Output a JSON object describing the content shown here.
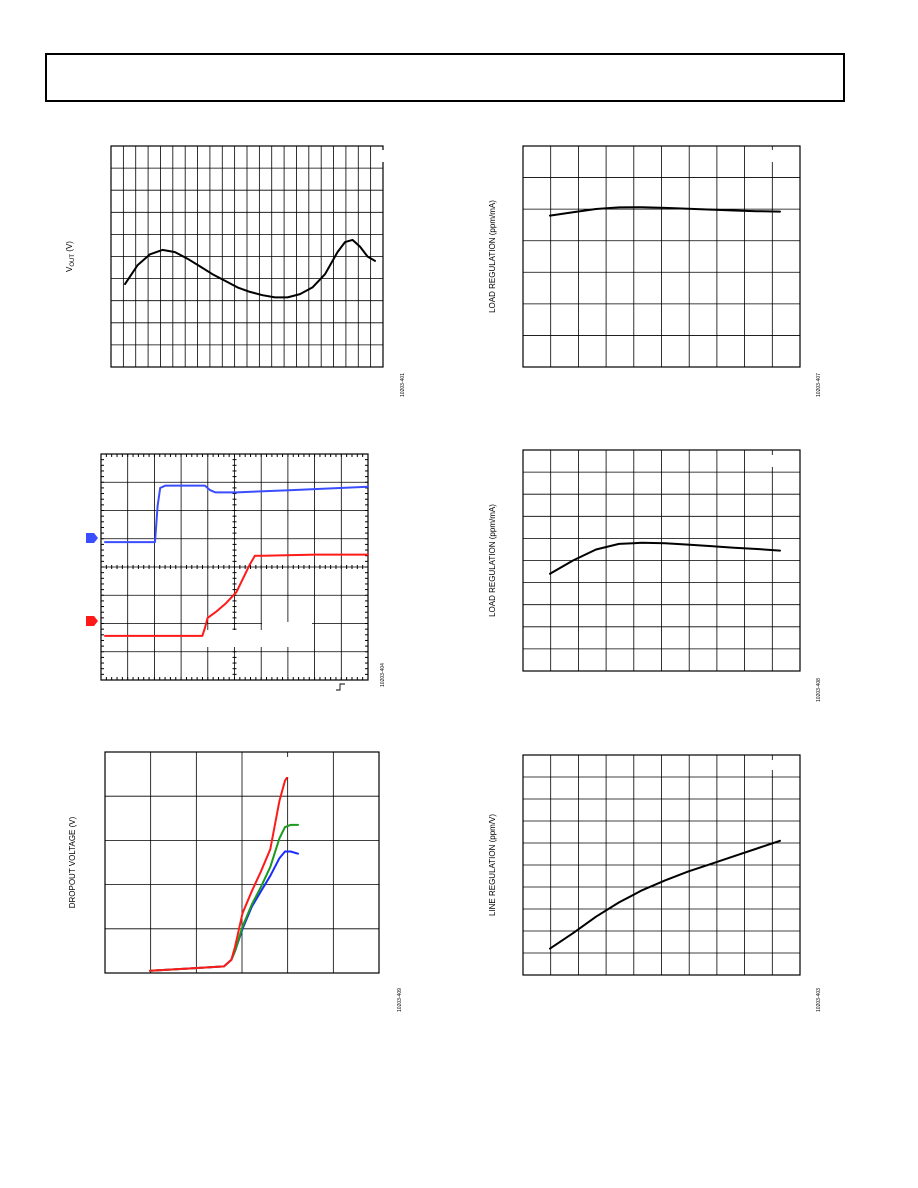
{
  "header": {
    "title": ""
  },
  "figures": [
    {
      "ylabel": "V",
      "ylabel_sub": "OUT",
      "ylabel_unit": " (V)",
      "fig_id": "10203-401"
    },
    {
      "ylabel": "LOAD REGULATION (ppm/mA)",
      "fig_id": "10203-407"
    },
    {
      "ylabel": "",
      "fig_id": "10203-404"
    },
    {
      "ylabel": "LOAD REGULATION (ppm/mA)",
      "fig_id": "10203-408"
    },
    {
      "ylabel": "DROPOUT VOLTAGE (V)",
      "fig_id": "10203-409"
    },
    {
      "ylabel": "LINE REGULATION (ppm/V)",
      "fig_id": "10203-403"
    }
  ],
  "chart_data": [
    {
      "type": "line",
      "title": "",
      "xlabel": "",
      "ylabel": "VOUT (V)",
      "grid": true,
      "series": [
        {
          "color": "#000000",
          "x": [
            0,
            0.05,
            0.1,
            0.15,
            0.2,
            0.25,
            0.3,
            0.35,
            0.4,
            0.45,
            0.5,
            0.55,
            0.6,
            0.65,
            0.7,
            0.75,
            0.8,
            0.85,
            0.88,
            0.91,
            0.94,
            0.97,
            1.0
          ],
          "y": [
            0.375,
            0.46,
            0.51,
            0.53,
            0.52,
            0.49,
            0.455,
            0.42,
            0.39,
            0.36,
            0.34,
            0.325,
            0.315,
            0.315,
            0.33,
            0.36,
            0.42,
            0.52,
            0.565,
            0.575,
            0.545,
            0.5,
            0.48
          ]
        }
      ]
    },
    {
      "type": "line",
      "title": "",
      "xlabel": "",
      "ylabel": "LOAD REGULATION (ppm/mA)",
      "grid": true,
      "series": [
        {
          "color": "#000000",
          "x": [
            0,
            0.1,
            0.2,
            0.3,
            0.4,
            0.5,
            0.6,
            0.7,
            0.8,
            0.9,
            1.0
          ],
          "y": [
            0.685,
            0.7,
            0.715,
            0.722,
            0.723,
            0.72,
            0.716,
            0.712,
            0.708,
            0.705,
            0.703
          ]
        }
      ]
    },
    {
      "type": "line",
      "title": "",
      "xlabel": "",
      "ylabel": "",
      "grid": true,
      "markers": [
        "blue-arrow",
        "red-arrow"
      ],
      "series": [
        {
          "color": "#3a4dff",
          "x": [
            0,
            0.19,
            0.2,
            0.21,
            0.23,
            0.38,
            0.4,
            0.42,
            0.5,
            0.7,
            1.0
          ],
          "y": [
            0.61,
            0.61,
            0.77,
            0.85,
            0.86,
            0.86,
            0.84,
            0.83,
            0.83,
            0.84,
            0.855
          ]
        },
        {
          "color": "#ff1a1a",
          "x": [
            0,
            0.37,
            0.38,
            0.39,
            0.42,
            0.46,
            0.5,
            0.55,
            0.57,
            0.6,
            0.8,
            1.0
          ],
          "y": [
            0.195,
            0.195,
            0.23,
            0.275,
            0.3,
            0.34,
            0.39,
            0.51,
            0.55,
            0.55,
            0.555,
            0.555
          ]
        }
      ]
    },
    {
      "type": "line",
      "title": "",
      "xlabel": "",
      "ylabel": "LOAD REGULATION (ppm/mA)",
      "grid": true,
      "series": [
        {
          "color": "#000000",
          "x": [
            0,
            0.1,
            0.2,
            0.3,
            0.4,
            0.5,
            0.6,
            0.7,
            0.8,
            0.9,
            1.0
          ],
          "y": [
            0.44,
            0.5,
            0.55,
            0.575,
            0.58,
            0.578,
            0.572,
            0.565,
            0.558,
            0.552,
            0.545
          ]
        }
      ]
    },
    {
      "type": "line",
      "title": "",
      "xlabel": "",
      "ylabel": "DROPOUT VOLTAGE (V)",
      "grid": true,
      "series": [
        {
          "color": "#1a2bff",
          "x": [
            0,
            0.2,
            0.4,
            0.44,
            0.46,
            0.5,
            0.55,
            0.6,
            0.65,
            0.7,
            0.73,
            0.76,
            0.8
          ],
          "y": [
            0.01,
            0.02,
            0.03,
            0.06,
            0.1,
            0.2,
            0.3,
            0.37,
            0.44,
            0.52,
            0.55,
            0.55,
            0.54
          ]
        },
        {
          "color": "#1a9a1a",
          "x": [
            0,
            0.2,
            0.4,
            0.44,
            0.46,
            0.5,
            0.55,
            0.6,
            0.65,
            0.7,
            0.73,
            0.76,
            0.8
          ],
          "y": [
            0.01,
            0.02,
            0.03,
            0.06,
            0.1,
            0.21,
            0.31,
            0.39,
            0.48,
            0.61,
            0.66,
            0.67,
            0.67
          ]
        },
        {
          "color": "#ff1a1a",
          "x": [
            0,
            0.2,
            0.4,
            0.44,
            0.46,
            0.5,
            0.55,
            0.6,
            0.65,
            0.7,
            0.73,
            0.76,
            0.8
          ],
          "y": [
            0.01,
            0.02,
            0.03,
            0.06,
            0.12,
            0.27,
            0.37,
            0.46,
            0.56,
            0.78,
            0.87,
            0.91,
            0.94
          ]
        }
      ]
    },
    {
      "type": "line",
      "title": "",
      "xlabel": "",
      "ylabel": "LINE REGULATION (ppm/V)",
      "grid": true,
      "series": [
        {
          "color": "#000000",
          "x": [
            0,
            0.1,
            0.2,
            0.3,
            0.4,
            0.5,
            0.6,
            0.7,
            0.8,
            0.9,
            1.0
          ],
          "y": [
            0.12,
            0.19,
            0.265,
            0.33,
            0.385,
            0.43,
            0.47,
            0.505,
            0.54,
            0.575,
            0.61
          ]
        }
      ]
    }
  ]
}
